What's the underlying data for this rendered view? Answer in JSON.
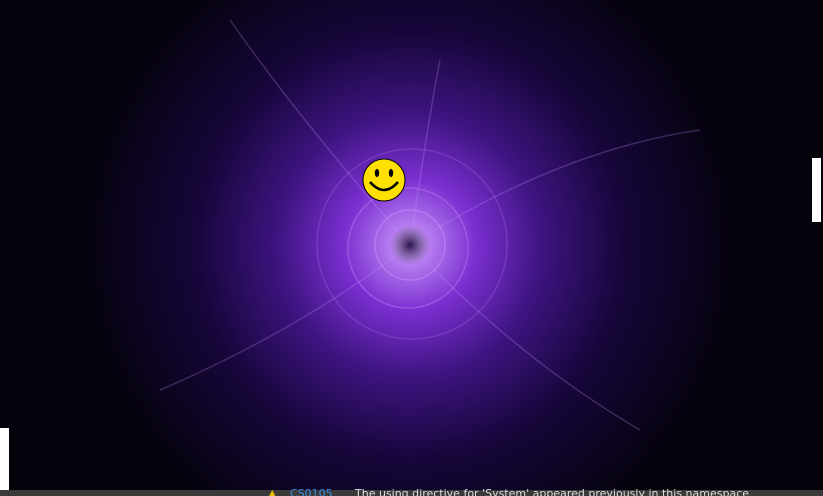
{
  "status_bar": {
    "code": "CS0105",
    "message": "The using directive for 'System' appeared previously in this namespace"
  }
}
